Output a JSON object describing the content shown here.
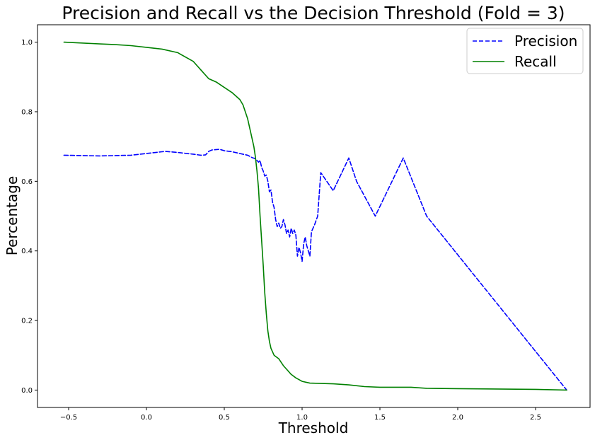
{
  "chart_data": {
    "type": "line",
    "title": "Precision and Recall vs the Decision Threshold (Fold = 3)",
    "xlabel": "Threshold",
    "ylabel": "Percentage",
    "xlim": [
      -0.7,
      2.85
    ],
    "ylim": [
      -0.05,
      1.05
    ],
    "xticks": [
      -0.5,
      0.0,
      0.5,
      1.0,
      1.5,
      2.0,
      2.5
    ],
    "xtick_labels": [
      "−0.5",
      "0.0",
      "0.5",
      "1.0",
      "1.5",
      "2.0",
      "2.5"
    ],
    "yticks": [
      0.0,
      0.2,
      0.4,
      0.6,
      0.8,
      1.0
    ],
    "ytick_labels": [
      "0.0",
      "0.2",
      "0.4",
      "0.6",
      "0.8",
      "1.0"
    ],
    "grid": false,
    "legend_position": "top-right",
    "series": [
      {
        "name": "Precision",
        "color": "#0000ff",
        "style": "dashed",
        "points": [
          [
            -0.53,
            0.675
          ],
          [
            -0.3,
            0.673
          ],
          [
            -0.1,
            0.675
          ],
          [
            0.1,
            0.685
          ],
          [
            0.12,
            0.686
          ],
          [
            0.2,
            0.683
          ],
          [
            0.3,
            0.678
          ],
          [
            0.35,
            0.675
          ],
          [
            0.38,
            0.676
          ],
          [
            0.4,
            0.686
          ],
          [
            0.42,
            0.69
          ],
          [
            0.47,
            0.692
          ],
          [
            0.5,
            0.688
          ],
          [
            0.55,
            0.685
          ],
          [
            0.6,
            0.68
          ],
          [
            0.65,
            0.675
          ],
          [
            0.68,
            0.668
          ],
          [
            0.7,
            0.665
          ],
          [
            0.72,
            0.655
          ],
          [
            0.73,
            0.66
          ],
          [
            0.74,
            0.64
          ],
          [
            0.75,
            0.63
          ],
          [
            0.76,
            0.615
          ],
          [
            0.77,
            0.618
          ],
          [
            0.78,
            0.6
          ],
          [
            0.79,
            0.57
          ],
          [
            0.8,
            0.575
          ],
          [
            0.81,
            0.54
          ],
          [
            0.82,
            0.525
          ],
          [
            0.83,
            0.49
          ],
          [
            0.84,
            0.47
          ],
          [
            0.85,
            0.48
          ],
          [
            0.86,
            0.465
          ],
          [
            0.87,
            0.47
          ],
          [
            0.88,
            0.49
          ],
          [
            0.89,
            0.475
          ],
          [
            0.9,
            0.45
          ],
          [
            0.91,
            0.46
          ],
          [
            0.92,
            0.44
          ],
          [
            0.93,
            0.465
          ],
          [
            0.94,
            0.45
          ],
          [
            0.95,
            0.46
          ],
          [
            0.96,
            0.445
          ],
          [
            0.97,
            0.385
          ],
          [
            0.98,
            0.41
          ],
          [
            0.99,
            0.395
          ],
          [
            1.0,
            0.37
          ],
          [
            1.01,
            0.42
          ],
          [
            1.02,
            0.44
          ],
          [
            1.03,
            0.415
          ],
          [
            1.04,
            0.4
          ],
          [
            1.05,
            0.385
          ],
          [
            1.06,
            0.455
          ],
          [
            1.08,
            0.475
          ],
          [
            1.1,
            0.5
          ],
          [
            1.12,
            0.625
          ],
          [
            1.2,
            0.573
          ],
          [
            1.3,
            0.667
          ],
          [
            1.35,
            0.6
          ],
          [
            1.47,
            0.5
          ],
          [
            1.65,
            0.667
          ],
          [
            1.8,
            0.5
          ],
          [
            2.7,
            0.0
          ]
        ]
      },
      {
        "name": "Recall",
        "color": "#008000",
        "style": "solid",
        "points": [
          [
            -0.53,
            1.0
          ],
          [
            -0.3,
            0.995
          ],
          [
            -0.2,
            0.993
          ],
          [
            -0.1,
            0.99
          ],
          [
            0.0,
            0.985
          ],
          [
            0.1,
            0.98
          ],
          [
            0.2,
            0.97
          ],
          [
            0.3,
            0.945
          ],
          [
            0.35,
            0.92
          ],
          [
            0.4,
            0.895
          ],
          [
            0.45,
            0.885
          ],
          [
            0.5,
            0.87
          ],
          [
            0.55,
            0.855
          ],
          [
            0.6,
            0.835
          ],
          [
            0.62,
            0.82
          ],
          [
            0.65,
            0.78
          ],
          [
            0.67,
            0.74
          ],
          [
            0.68,
            0.72
          ],
          [
            0.69,
            0.7
          ],
          [
            0.7,
            0.67
          ],
          [
            0.71,
            0.63
          ],
          [
            0.72,
            0.58
          ],
          [
            0.73,
            0.5
          ],
          [
            0.74,
            0.43
          ],
          [
            0.75,
            0.36
          ],
          [
            0.76,
            0.28
          ],
          [
            0.77,
            0.22
          ],
          [
            0.78,
            0.17
          ],
          [
            0.79,
            0.14
          ],
          [
            0.8,
            0.12
          ],
          [
            0.82,
            0.1
          ],
          [
            0.85,
            0.09
          ],
          [
            0.88,
            0.07
          ],
          [
            0.9,
            0.06
          ],
          [
            0.93,
            0.045
          ],
          [
            0.96,
            0.035
          ],
          [
            1.0,
            0.025
          ],
          [
            1.05,
            0.02
          ],
          [
            1.2,
            0.018
          ],
          [
            1.3,
            0.015
          ],
          [
            1.4,
            0.01
          ],
          [
            1.5,
            0.008
          ],
          [
            1.7,
            0.008
          ],
          [
            1.8,
            0.005
          ],
          [
            2.0,
            0.004
          ],
          [
            2.5,
            0.002
          ],
          [
            2.7,
            0.0
          ]
        ]
      }
    ]
  }
}
